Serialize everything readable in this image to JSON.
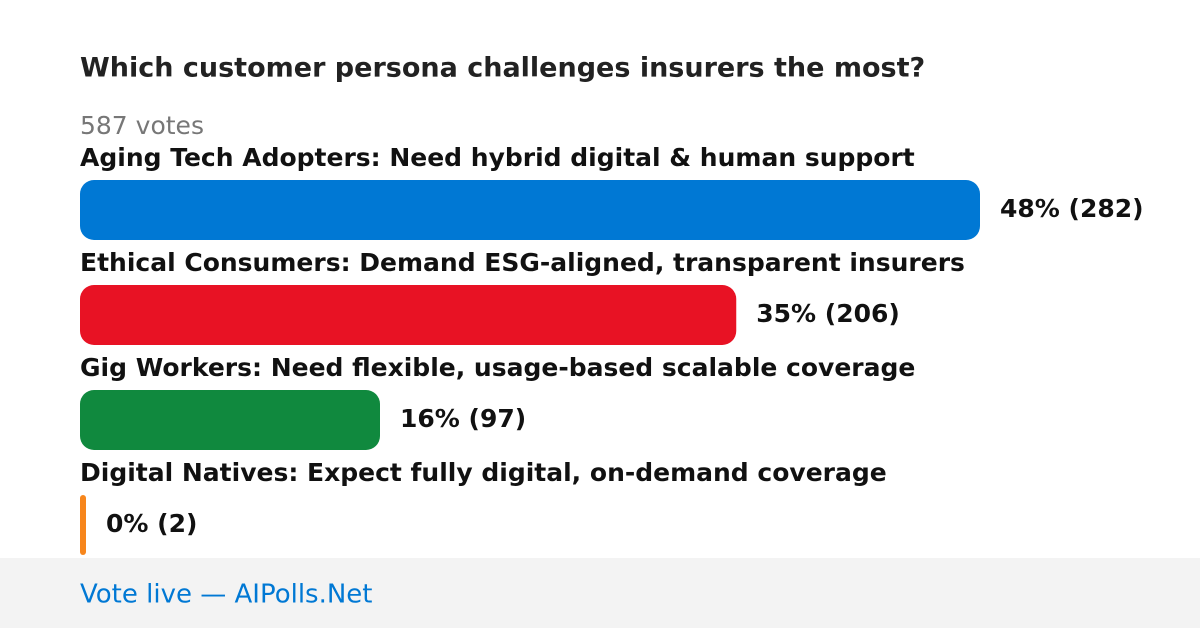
{
  "chart_data": {
    "type": "bar",
    "title": "Which customer persona challenges insurers the most?",
    "subtitle": "587 votes",
    "categories": [
      "Aging Tech Adopters: Need hybrid digital & human support",
      "Ethical Consumers: Demand ESG-aligned, transparent insurers",
      "Gig Workers: Need flexible, usage-based scalable coverage",
      "Digital Natives: Expect fully digital, on-demand coverage"
    ],
    "values": [
      48,
      35,
      16,
      0
    ],
    "counts": [
      282,
      206,
      97,
      2
    ],
    "value_labels": [
      "48% (282)",
      "35% (206)",
      "16% (97)",
      "0% (2)"
    ],
    "colors": [
      "#0078d4",
      "#e81224",
      "#10893e",
      "#f7861c"
    ],
    "footer": "Vote live — AIPolls.Net"
  }
}
